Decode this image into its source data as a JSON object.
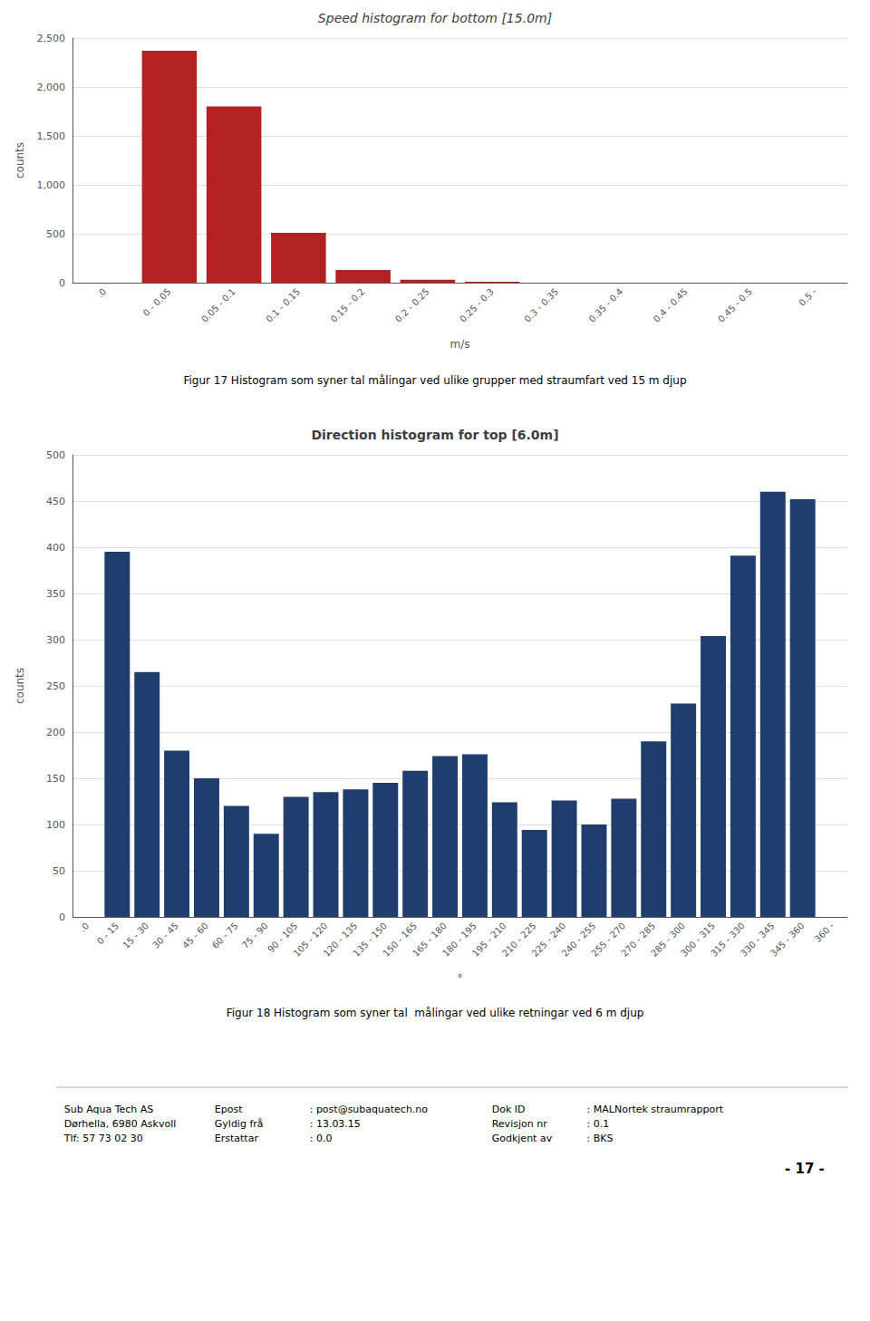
{
  "chart_data": [
    {
      "type": "bar",
      "title": "Speed histogram for bottom [15.0m]",
      "x_label": "m/s",
      "y_label": "counts",
      "color": "#B22222",
      "categories": [
        ".0",
        "0 - 0.05",
        "0.05 - 0.1",
        "0.1 - 0.15",
        "0.15 - 0.2",
        "0.2 - 0.25",
        "0.25 - 0.3",
        "0.3 - 0.35",
        "0.35 - 0.4",
        "0.4 - 0.45",
        "0.45 - 0.5",
        "0.5 -"
      ],
      "values": [
        0,
        2370,
        1800,
        510,
        130,
        30,
        10,
        0,
        0,
        0,
        0,
        0
      ],
      "ylim": [
        0,
        2500
      ],
      "yticks": [
        0,
        500,
        {
          "value": 1000,
          "label": "1,000"
        },
        {
          "value": 1500,
          "label": "1,500"
        },
        {
          "value": 2000,
          "label": "2,000"
        },
        {
          "value": 2500,
          "label": "2,500"
        }
      ],
      "grid": true,
      "annotations": [
        "Figur 17 Histogram som syner tal målingar ved ulike grupper med straumfart ved 15 m djup"
      ]
    },
    {
      "type": "bar",
      "title": "Direction histogram for top [6.0m]",
      "x_label": "°",
      "y_label": "counts",
      "color": "#1F3E6E",
      "categories": [
        ".0",
        "0 - 15",
        "15 - 30",
        "30 - 45",
        "45 - 60",
        "60 - 75",
        "75 - 90",
        "90 - 105",
        "105 - 120",
        "120 - 135",
        "135 - 150",
        "150 - 165",
        "165 - 180",
        "180 - 195",
        "195 - 210",
        "210 - 225",
        "225 - 240",
        "240 - 255",
        "255 - 270",
        "270 - 285",
        "285 - 300",
        "300 - 315",
        "315 - 330",
        "330 - 345",
        "345 - 360",
        "360 -"
      ],
      "values": [
        0,
        395,
        265,
        180,
        150,
        120,
        90,
        130,
        135,
        138,
        145,
        158,
        174,
        176,
        124,
        94,
        126,
        100,
        128,
        190,
        231,
        304,
        391,
        460,
        452,
        0
      ],
      "ylim": [
        0,
        500
      ],
      "yticks": [
        0,
        50,
        100,
        150,
        200,
        250,
        300,
        350,
        400,
        450,
        500
      ],
      "grid": true,
      "annotations": [
        "Figur 18 Histogram som syner tal  målingar ved ulike retningar ved 6 m djup",
        "Sub Aqua Tech AS\nDørhella, 6980 Askvoll\nTlf: 57 73 02 30",
        "Epost\nGyldig frå\nErstattar",
        ": post@subaquatech.no\n: 13.03.15\n: 0.0",
        "Dok ID\nRevisjon nr\nGodkjent av",
        ": MALNortek straumrapport\n: 0.1\n: BKS",
        "- 17 -"
      ]
    }
  ]
}
